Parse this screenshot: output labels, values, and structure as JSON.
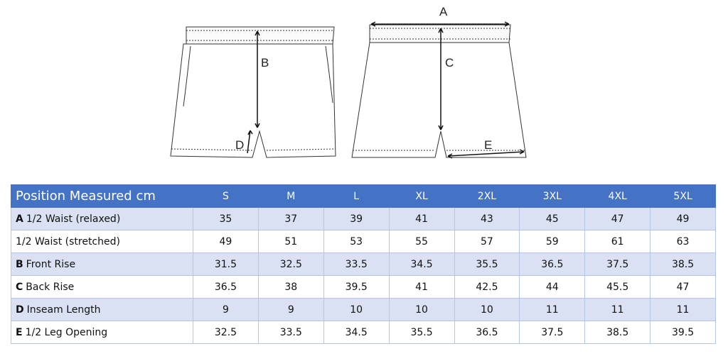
{
  "diagram": {
    "labels": [
      "A",
      "B",
      "C",
      "D",
      "E"
    ]
  },
  "table": {
    "title": "Position Measured cm",
    "sizes": [
      "S",
      "M",
      "L",
      "XL",
      "2XL",
      "3XL",
      "4XL",
      "5XL"
    ],
    "rows": [
      {
        "letter": "A",
        "label": "1/2 Waist (relaxed)",
        "values": [
          35,
          37,
          39,
          41,
          43,
          45,
          47,
          49
        ]
      },
      {
        "label": "1/2 Waist (stretched)",
        "values": [
          49,
          51,
          53,
          55,
          57,
          59,
          61,
          63
        ]
      },
      {
        "letter": "B",
        "label": "Front Rise",
        "values": [
          31.5,
          32.5,
          33.5,
          34.5,
          35.5,
          36.5,
          37.5,
          38.5
        ]
      },
      {
        "letter": "C",
        "label": "Back Rise",
        "values": [
          36.5,
          38,
          39.5,
          41,
          42.5,
          44,
          45.5,
          47
        ]
      },
      {
        "letter": "D",
        "label": "Inseam Length",
        "values": [
          9,
          9,
          10,
          10,
          10,
          11,
          11,
          11
        ]
      },
      {
        "letter": "E",
        "label": "1/2 Leg Opening",
        "values": [
          32.5,
          33.5,
          34.5,
          35.5,
          36.5,
          37.5,
          38.5,
          39.5
        ]
      }
    ]
  }
}
